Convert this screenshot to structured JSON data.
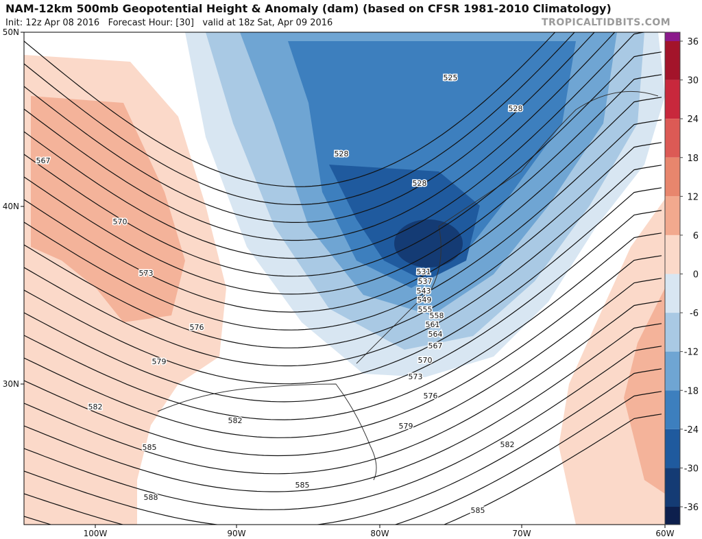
{
  "header": {
    "title": "NAM-12km 500mb Geopotential Height & Anomaly (dam) (based on CFSR 1981-2010 Climatology)",
    "subtitle": "Init: 12z Apr 08 2016   Forecast Hour: [30]   valid at 18z Sat, Apr 09 2016",
    "watermark": "TROPICALTIDBITS.COM"
  },
  "map": {
    "lat_labels": [
      "50N",
      "40N",
      "30N"
    ],
    "lon_labels": [
      "100W",
      "90W",
      "80W",
      "70W",
      "60W"
    ],
    "contour_labels": [
      525,
      528,
      528,
      528,
      567,
      570,
      573,
      576,
      579,
      582,
      582,
      585,
      588,
      531,
      537,
      543,
      549,
      555,
      558,
      561,
      564,
      567,
      570,
      573,
      576,
      579,
      582,
      585,
      585
    ]
  },
  "colorbar": {
    "ticks": [
      36,
      30,
      24,
      18,
      12,
      6,
      0,
      -6,
      -12,
      -18,
      -24,
      -30,
      -36
    ],
    "colors": [
      "#8b1a8b",
      "#a3142a",
      "#c8283c",
      "#dc5a55",
      "#e8866d",
      "#f2a98e",
      "#fbd9c9",
      "#d8e6f2",
      "#a9c9e4",
      "#6fa5d3",
      "#3d7fbe",
      "#1f5a9e",
      "#143b74",
      "#0d1f4d"
    ]
  }
}
